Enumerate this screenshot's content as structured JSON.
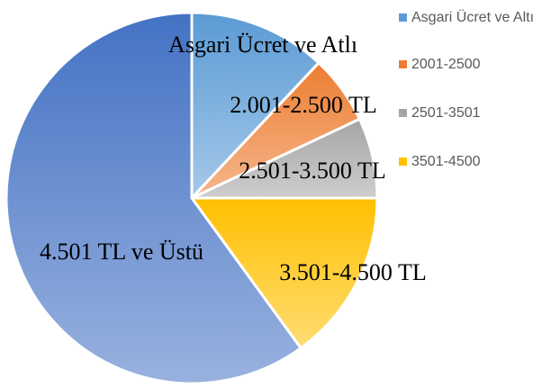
{
  "chart_data": {
    "type": "pie",
    "categories": [
      "Asgari Ücret ve Altı",
      "2001-2500",
      "2501-3501",
      "3501-4500",
      null
    ],
    "values": [
      12,
      6,
      7,
      15,
      60
    ],
    "labels": [
      "Asgari Ücret ve Atlı",
      "2.001-2.500 TL",
      "2.501-3.500 TL",
      "3.501-4.500 TL",
      "4.501 TL ve Üstü"
    ],
    "colors": [
      "#5b9bd5",
      "#ed7d31",
      "#a5a5a5",
      "#ffc000",
      "#4472c4"
    ],
    "legend": "top-right"
  }
}
